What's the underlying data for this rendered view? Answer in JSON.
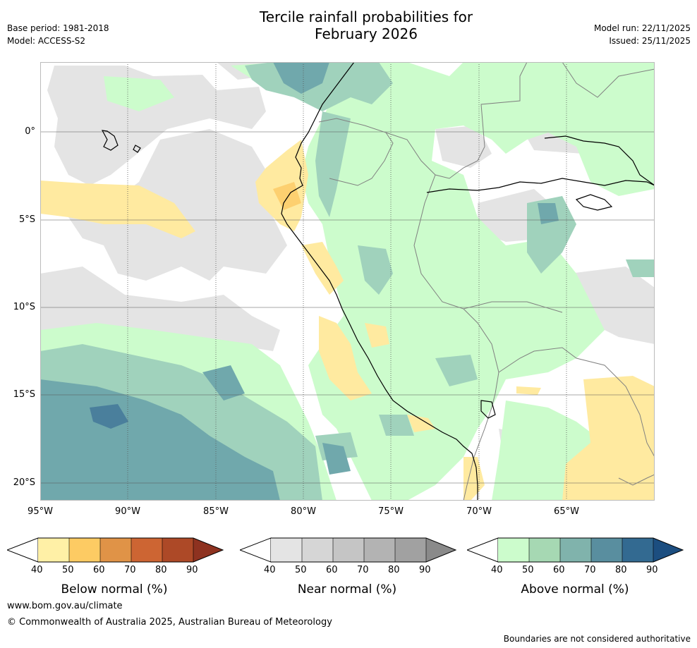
{
  "header": {
    "title_line1": "Tercile rainfall probabilities for",
    "title_line2": "February 2026",
    "base_period": "Base period: 1981-2018",
    "model": "Model: ACCESS-S2",
    "model_run": "Model run: 22/11/2025",
    "issued": "Issued: 25/11/2025"
  },
  "map": {
    "lat_labels": [
      "0°",
      "5°S",
      "10°S",
      "15°S",
      "20°S"
    ],
    "lon_labels": [
      "95°W",
      "90°W",
      "85°W",
      "80°W",
      "75°W",
      "70°W",
      "65°W"
    ],
    "colors": {
      "ocean": "#ffffff",
      "near": "#e4e4e4",
      "above_50": "#ccfccc",
      "above_60": "#a0d2bc",
      "above_70": "#70a8ac",
      "above_80": "#4a7f9c",
      "below_50": "#ffeaa0",
      "below_60": "#fdd070",
      "coast": "#000000",
      "border": "#808080",
      "grid": "#555555"
    }
  },
  "colorbars": {
    "tick_values": [
      "40",
      "50",
      "60",
      "70",
      "80",
      "90"
    ],
    "below": {
      "title": "Below normal (%)",
      "colors": [
        "#fff0a6",
        "#fdcb63",
        "#e09347",
        "#cd6533",
        "#ad4927",
        "#8e3220"
      ]
    },
    "near": {
      "title": "Near normal (%)",
      "colors": [
        "#e4e4e4",
        "#d6d6d6",
        "#c5c5c5",
        "#b3b3b3",
        "#a1a1a1",
        "#8a8a8a"
      ]
    },
    "above": {
      "title": "Above normal (%)",
      "colors": [
        "#ccfccc",
        "#a6d8b3",
        "#80b3ac",
        "#598e9f",
        "#336a91",
        "#1c4e80"
      ]
    }
  },
  "footer": {
    "website": "www.bom.gov.au/climate",
    "copyright": "© Commonwealth of Australia 2025, Australian Bureau of Meteorology",
    "disclaimer": "Boundaries are not considered authoritative"
  }
}
